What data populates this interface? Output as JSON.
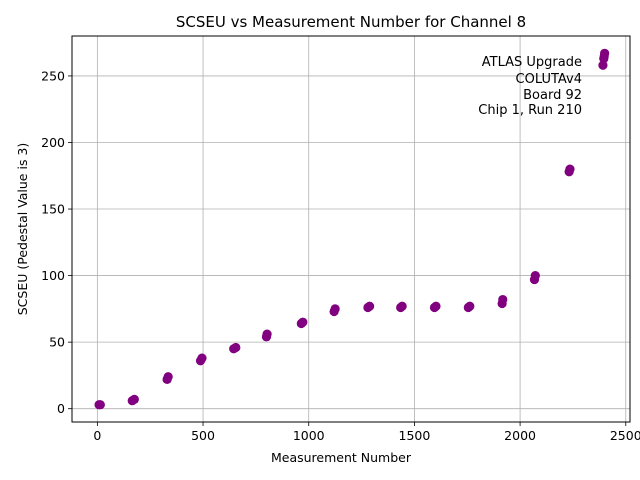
{
  "chart_data": {
    "type": "scatter",
    "title": "SCSEU vs Measurement Number for Channel 8",
    "xlabel": "Measurement Number",
    "ylabel": "SCSEU (Pedestal Value is 3)",
    "xlim": [
      -120,
      2520
    ],
    "ylim": [
      -10,
      280
    ],
    "xticks": [
      0,
      500,
      1000,
      1500,
      2000,
      2500
    ],
    "yticks": [
      0,
      50,
      100,
      150,
      200,
      250
    ],
    "grid": true,
    "marker_color": "#800080",
    "annotation": [
      "ATLAS Upgrade",
      "COLUTAv4",
      "Board 92",
      "Chip 1, Run 210"
    ],
    "series": [
      {
        "x": [
          8,
          14,
          165,
          175,
          330,
          335,
          488,
          495,
          645,
          655,
          800,
          803,
          965,
          972,
          1120,
          1125,
          1280,
          1288,
          1435,
          1442,
          1595,
          1602,
          1755,
          1762,
          1915,
          1918,
          2068,
          2072,
          2232,
          2236,
          2392,
          2396,
          2398,
          2400
        ],
        "y": [
          3,
          3,
          6,
          7,
          22,
          24,
          36,
          38,
          45,
          46,
          54,
          56,
          64,
          65,
          73,
          75,
          76,
          77,
          76,
          77,
          76,
          77,
          76,
          77,
          79,
          82,
          97,
          100,
          178,
          180,
          258,
          263,
          265,
          267
        ]
      }
    ]
  }
}
